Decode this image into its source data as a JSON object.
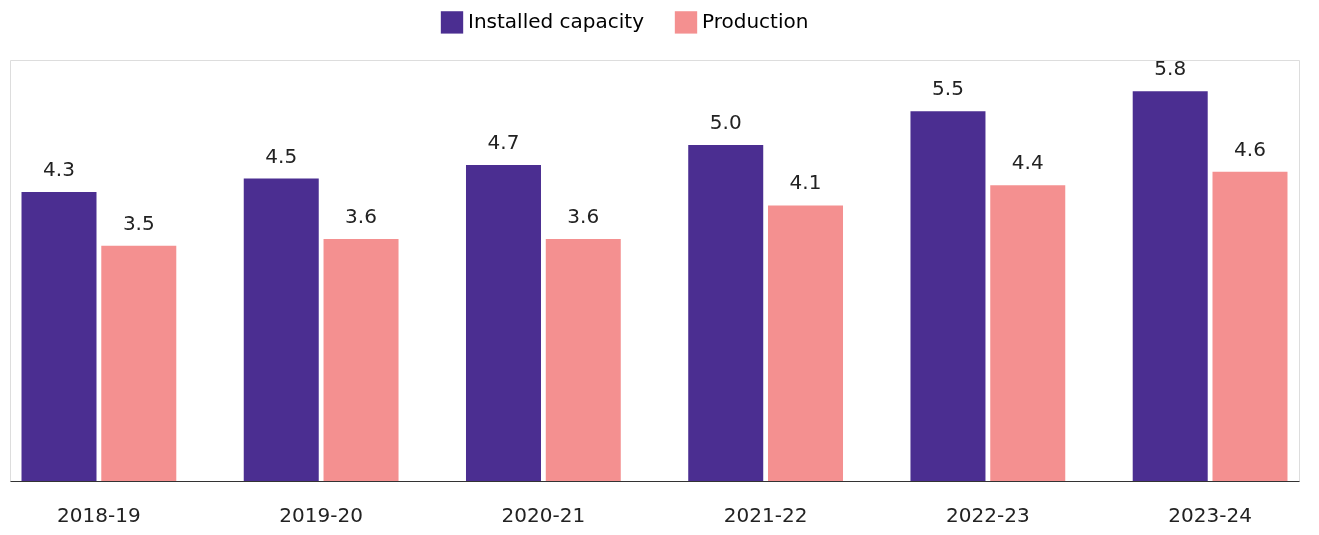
{
  "chart_data": {
    "type": "bar",
    "categories": [
      "2018-19",
      "2019-20",
      "2020-21",
      "2021-22",
      "2022-23",
      "2023-24"
    ],
    "series": [
      {
        "name": "Installed capacity",
        "color": "#4b2e91",
        "values": [
          4.3,
          4.5,
          4.7,
          5.0,
          5.5,
          5.8
        ],
        "value_labels": [
          "4.3",
          "4.5",
          "4.7",
          "5.0",
          "5.5",
          "5.8"
        ]
      },
      {
        "name": "Production",
        "color": "#f49090",
        "values": [
          3.5,
          3.6,
          3.6,
          4.1,
          4.4,
          4.6
        ],
        "value_labels": [
          "3.5",
          "3.6",
          "3.6",
          "4.1",
          "4.4",
          "4.6"
        ]
      }
    ],
    "legend": "top",
    "grid": false
  }
}
